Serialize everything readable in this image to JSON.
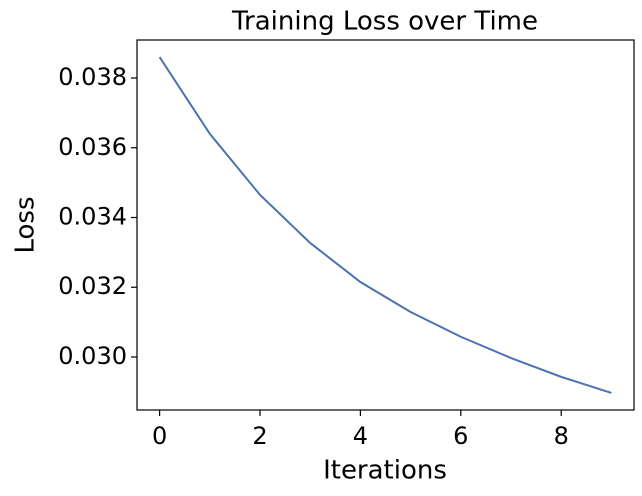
{
  "chart_data": {
    "type": "line",
    "title": "Training Loss over Time",
    "xlabel": "Iterations",
    "ylabel": "Loss",
    "x": [
      0,
      1,
      2,
      3,
      4,
      5,
      6,
      7,
      8,
      9
    ],
    "series": [
      {
        "name": "Loss",
        "color": "#4c72b0",
        "values": [
          0.0386,
          0.0364,
          0.03465,
          0.03327,
          0.03215,
          0.03129,
          0.03058,
          0.02997,
          0.02943,
          0.02897
        ]
      }
    ],
    "xlim": [
      -0.45,
      9.45
    ],
    "xticks": [
      0,
      2,
      4,
      6,
      8
    ],
    "ylim": [
      0.02848,
      0.03909
    ],
    "yticks": [
      {
        "value": 0.03,
        "label": "0.030"
      },
      {
        "value": 0.032,
        "label": "0.032"
      },
      {
        "value": 0.034,
        "label": "0.034"
      },
      {
        "value": 0.036,
        "label": "0.036"
      },
      {
        "value": 0.038,
        "label": "0.038"
      }
    ],
    "grid": false
  }
}
